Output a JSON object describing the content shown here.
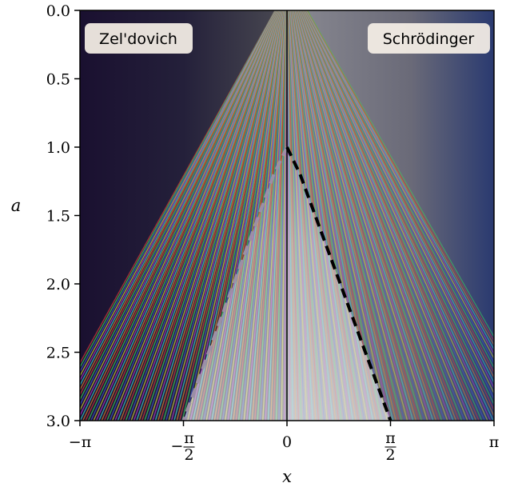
{
  "chart_data": {
    "type": "heatmap",
    "title": "",
    "xlabel": "x",
    "ylabel": "a",
    "xlim": [
      -3.14159,
      3.14159
    ],
    "ylim": [
      3.0,
      0.0
    ],
    "y_inverted": true,
    "x_ticks": [
      {
        "value": -3.14159,
        "label": "−π"
      },
      {
        "value": -1.5708,
        "label": "−π/2"
      },
      {
        "value": 0,
        "label": "0"
      },
      {
        "value": 1.5708,
        "label": "π/2"
      },
      {
        "value": 3.14159,
        "label": "π"
      }
    ],
    "y_ticks": [
      {
        "value": 0.0,
        "label": "0.0"
      },
      {
        "value": 0.5,
        "label": "0.5"
      },
      {
        "value": 1.0,
        "label": "1.0"
      },
      {
        "value": 1.5,
        "label": "1.5"
      },
      {
        "value": 2.0,
        "label": "2.0"
      },
      {
        "value": 2.5,
        "label": "2.5"
      },
      {
        "value": 3.0,
        "label": "3.0"
      }
    ],
    "panels": [
      {
        "name": "Zel'dovich",
        "side": "left"
      },
      {
        "name": "Schrödinger",
        "side": "right"
      }
    ],
    "caustic_boundary": {
      "style": "dashed",
      "points_left": [
        [
          0.0,
          1.0
        ],
        [
          -0.2,
          1.2
        ],
        [
          -1.5708,
          3.0
        ]
      ],
      "points_right": [
        [
          0.0,
          1.0
        ],
        [
          0.2,
          1.2
        ],
        [
          1.5708,
          3.0
        ]
      ]
    },
    "grid": false,
    "legend": "none",
    "colors": {
      "boundary": "#000000",
      "boundary_left": "#9c8fa6",
      "label_box": "#f5efe6"
    }
  }
}
